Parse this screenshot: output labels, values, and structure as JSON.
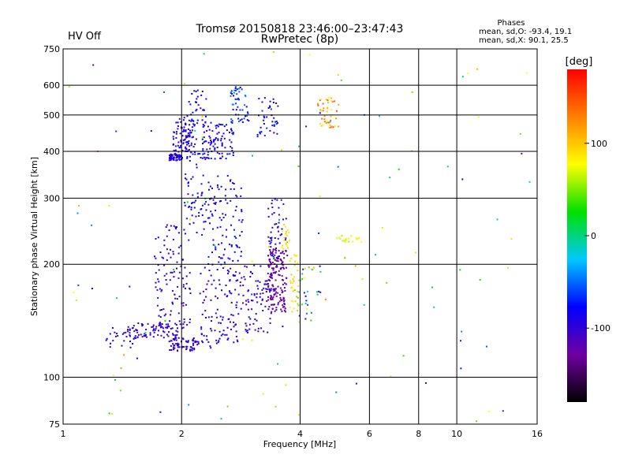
{
  "header": {
    "title_line1": "Tromsø 20150818 23:46:00–23:47:43",
    "title_line2": "RwPretec (8p)",
    "status": "HV Off",
    "status_color": "#cc0000",
    "stats_title": "Phases",
    "stats_o": "mean, sd,O: -93.4, 19.1",
    "stats_x": "mean, sd,X:  90.1, 25.5"
  },
  "chart_data": {
    "type": "scatter",
    "title": "Tromsø 20150818 23:46:00–23:47:43",
    "subtitle": "RwPretec (8p)",
    "xlabel": "Frequency [MHz]",
    "ylabel": "Stationary phase Virtual Height [km]",
    "x_scale": "log",
    "y_scale": "log",
    "xlim": [
      1,
      16
    ],
    "ylim": [
      75,
      750
    ],
    "x_ticks": [
      1,
      2,
      4,
      6,
      8,
      10,
      16
    ],
    "x_tick_labels": [
      "1",
      "2",
      "4",
      "6",
      "8",
      "10",
      "16"
    ],
    "x_gridlines": [
      2,
      4,
      6,
      8,
      10
    ],
    "y_ticks": [
      75,
      100,
      200,
      300,
      400,
      500,
      600,
      750
    ],
    "y_tick_labels": [
      "75",
      "100",
      "200",
      "300",
      "400",
      "500",
      "600",
      "750"
    ],
    "y_gridlines": [
      100,
      200,
      300,
      400,
      500,
      600
    ],
    "grid": true,
    "colorbar": {
      "label": "[deg]",
      "range": [
        -180,
        180
      ],
      "ticks": [
        -100,
        0,
        100
      ],
      "tick_labels": [
        "-100",
        "0",
        "100"
      ],
      "colors": [
        "#000000",
        "#7000a0",
        "#0000ff",
        "#00c8ff",
        "#00e000",
        "#ffff00",
        "#ff8000",
        "#ff0000"
      ]
    },
    "clusters": [
      {
        "x": [
          1.28,
          1.55
        ],
        "y": [
          120,
          136
        ],
        "phase": [
          -105,
          -80
        ],
        "n": 25
      },
      {
        "x": [
          1.45,
          1.95
        ],
        "y": [
          128,
          140
        ],
        "phase": [
          -110,
          -90
        ],
        "n": 80
      },
      {
        "x": [
          1.7,
          2.1
        ],
        "y": [
          135,
          260
        ],
        "phase": [
          -110,
          -85
        ],
        "n": 110
      },
      {
        "x": [
          1.85,
          2.2
        ],
        "y": [
          118,
          128
        ],
        "phase": [
          -110,
          -90
        ],
        "n": 70
      },
      {
        "x": [
          1.85,
          2.0
        ],
        "y": [
          380,
          395
        ],
        "phase": [
          -105,
          -85
        ],
        "n": 60
      },
      {
        "x": [
          1.88,
          2.15
        ],
        "y": [
          395,
          500
        ],
        "phase": [
          -105,
          -80
        ],
        "n": 90
      },
      {
        "x": [
          2.02,
          2.3
        ],
        "y": [
          240,
          600
        ],
        "phase": [
          -100,
          -70
        ],
        "n": 110
      },
      {
        "x": [
          2.25,
          2.7
        ],
        "y": [
          380,
          480
        ],
        "phase": [
          -100,
          -70
        ],
        "n": 90
      },
      {
        "x": [
          2.2,
          2.9
        ],
        "y": [
          120,
          200
        ],
        "phase": [
          -110,
          -80
        ],
        "n": 120
      },
      {
        "x": [
          2.3,
          2.85
        ],
        "y": [
          200,
          350
        ],
        "phase": [
          -100,
          -70
        ],
        "n": 100
      },
      {
        "x": [
          2.65,
          2.95
        ],
        "y": [
          480,
          600
        ],
        "phase": [
          -90,
          -40
        ],
        "n": 50
      },
      {
        "x": [
          2.9,
          3.4
        ],
        "y": [
          130,
          200
        ],
        "phase": [
          -110,
          -85
        ],
        "n": 80
      },
      {
        "x": [
          3.1,
          3.5
        ],
        "y": [
          440,
          560
        ],
        "phase": [
          -100,
          -60
        ],
        "n": 40
      },
      {
        "x": [
          3.3,
          3.7
        ],
        "y": [
          200,
          300
        ],
        "phase": [
          -110,
          -80
        ],
        "n": 60
      },
      {
        "x": [
          3.3,
          3.68
        ],
        "y": [
          150,
          220
        ],
        "phase": [
          -135,
          -115
        ],
        "n": 140
      },
      {
        "x": [
          3.58,
          3.75
        ],
        "y": [
          220,
          260
        ],
        "phase": [
          60,
          100
        ],
        "n": 20
      },
      {
        "x": [
          3.75,
          3.95
        ],
        "y": [
          150,
          215
        ],
        "phase": [
          80,
          110
        ],
        "n": 30
      },
      {
        "x": [
          3.9,
          4.5
        ],
        "y": [
          140,
          200
        ],
        "phase": [
          -100,
          110
        ],
        "n": 35
      },
      {
        "x": [
          4.4,
          5.0
        ],
        "y": [
          460,
          560
        ],
        "phase": [
          70,
          150
        ],
        "n": 45
      },
      {
        "x": [
          4.9,
          5.8
        ],
        "y": [
          230,
          240
        ],
        "phase": [
          60,
          90
        ],
        "n": 20
      },
      {
        "x": [
          1.0,
          16.0
        ],
        "y": [
          75,
          750
        ],
        "phase": [
          -130,
          130
        ],
        "n": 120
      }
    ]
  }
}
